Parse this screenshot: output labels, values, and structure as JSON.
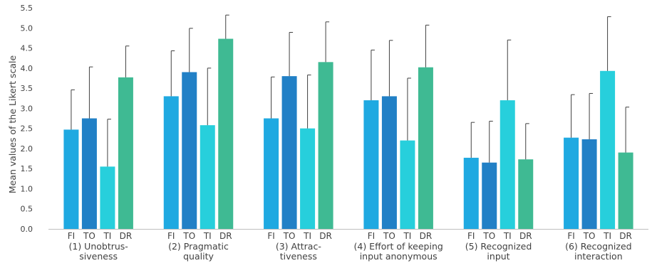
{
  "chart_data": {
    "type": "bar",
    "ylabel": "Mean values of the Likert scale",
    "ylim": [
      0,
      5.5
    ],
    "yticks": [
      "0.0",
      "0.5",
      "1.0",
      "1.5",
      "2.0",
      "2.5",
      "3.0",
      "3.5",
      "4.0",
      "4.5",
      "5.0",
      "5.5"
    ],
    "grid": false,
    "error_bars": true,
    "series": [
      {
        "name": "FI",
        "color": "#1fa9e1"
      },
      {
        "name": "TO",
        "color": "#2180c6"
      },
      {
        "name": "TI",
        "color": "#27cfdc"
      },
      {
        "name": "DR",
        "color": "#3fba93"
      }
    ],
    "groups": [
      {
        "label_lines": [
          "(1) Unobtrus-",
          "siveness"
        ],
        "values": [
          2.47,
          2.75,
          1.55,
          3.77
        ],
        "errors": [
          0.99,
          1.28,
          1.18,
          0.78
        ]
      },
      {
        "label_lines": [
          "(2) Pragmatic",
          "quality"
        ],
        "values": [
          3.3,
          3.9,
          2.58,
          4.73
        ],
        "errors": [
          1.13,
          1.09,
          1.42,
          0.59
        ]
      },
      {
        "label_lines": [
          "(3) Attrac-",
          "tiveness"
        ],
        "values": [
          2.75,
          3.8,
          2.5,
          4.15
        ],
        "errors": [
          1.03,
          1.09,
          1.33,
          1.0
        ]
      },
      {
        "label_lines": [
          "(4) Effort of keeping",
          "input anonymous"
        ],
        "values": [
          3.2,
          3.3,
          2.2,
          4.02
        ],
        "errors": [
          1.25,
          1.39,
          1.55,
          1.05
        ]
      },
      {
        "label_lines": [
          "(5) Recognized",
          "input"
        ],
        "values": [
          1.77,
          1.65,
          3.2,
          1.73
        ],
        "errors": [
          0.88,
          1.03,
          1.5,
          0.89
        ]
      },
      {
        "label_lines": [
          "(6) Recognized",
          "interaction"
        ],
        "values": [
          2.27,
          2.23,
          3.93,
          1.9
        ],
        "errors": [
          1.07,
          1.14,
          1.35,
          1.13
        ]
      }
    ]
  }
}
